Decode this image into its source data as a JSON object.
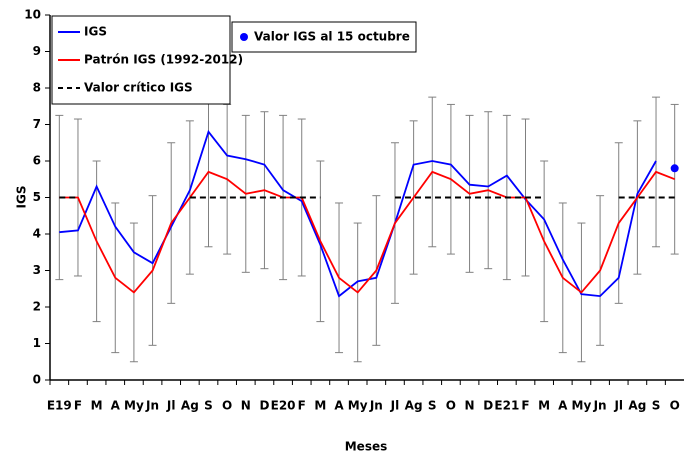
{
  "chart_data": {
    "type": "line",
    "y_label": "IGS",
    "x_label": "Meses",
    "categories": [
      "E19",
      "F",
      "M",
      "A",
      "My",
      "Jn",
      "Jl",
      "Ag",
      "S",
      "O",
      "N",
      "D",
      "E20",
      "F",
      "M",
      "A",
      "My",
      "Jn",
      "Jl",
      "Ag",
      "S",
      "O",
      "N",
      "D",
      "E21",
      "F",
      "M",
      "A",
      "My",
      "Jn",
      "Jl",
      "Ag",
      "S",
      "O"
    ],
    "ylim": [
      0,
      10
    ],
    "yticks": [
      0,
      1,
      2,
      3,
      4,
      5,
      6,
      7,
      8,
      9,
      10
    ],
    "series": [
      {
        "name": "IGS",
        "color": "#0000ff",
        "values": [
          4.05,
          4.1,
          5.3,
          4.2,
          3.5,
          3.2,
          4.2,
          5.2,
          6.8,
          6.15,
          6.05,
          5.9,
          5.2,
          4.9,
          3.7,
          2.3,
          2.7,
          2.8,
          4.3,
          5.9,
          6.0,
          5.9,
          5.35,
          5.3,
          5.6,
          4.95,
          4.4,
          3.3,
          2.35,
          2.3,
          2.8,
          5.1,
          6.0,
          null
        ]
      },
      {
        "name": "Patrón IGS (1992-2012)",
        "color": "#ff0000",
        "values": [
          5,
          5,
          3.8,
          2.8,
          2.4,
          3.0,
          4.3,
          5.0,
          5.7,
          5.5,
          5.1,
          5.2,
          5,
          5,
          3.8,
          2.8,
          2.4,
          3.0,
          4.3,
          5.0,
          5.7,
          5.5,
          5.1,
          5.2,
          5,
          5,
          3.8,
          2.8,
          2.4,
          3.0,
          4.3,
          5.0,
          5.7,
          5.5
        ],
        "errors": [
          2.25,
          2.15,
          2.2,
          2.05,
          1.9,
          2.05,
          2.2,
          2.1,
          2.05,
          2.05,
          2.15,
          2.15,
          2.25,
          2.15,
          2.2,
          2.05,
          1.9,
          2.05,
          2.2,
          2.1,
          2.05,
          2.05,
          2.15,
          2.15,
          2.25,
          2.15,
          2.2,
          2.05,
          1.9,
          2.05,
          2.2,
          2.1,
          2.05,
          2.05
        ],
        "error_color": "#808080"
      },
      {
        "name": "Valor crítico IGS",
        "color": "#000000",
        "dashed": true,
        "values": [
          5,
          5,
          null,
          null,
          null,
          null,
          null,
          5,
          5,
          5,
          5,
          5,
          5,
          5,
          5,
          null,
          null,
          null,
          5,
          5,
          5,
          5,
          5,
          5,
          5,
          5,
          5,
          null,
          null,
          null,
          5,
          5,
          5,
          5
        ]
      },
      {
        "name": "Valor IGS al 15 octubre",
        "color": "#0000ff",
        "marker_only": true,
        "values": [
          null,
          null,
          null,
          null,
          null,
          null,
          null,
          null,
          null,
          null,
          null,
          null,
          null,
          null,
          null,
          null,
          null,
          null,
          null,
          null,
          null,
          null,
          null,
          null,
          null,
          null,
          null,
          null,
          null,
          null,
          null,
          null,
          null,
          5.8
        ]
      }
    ]
  }
}
